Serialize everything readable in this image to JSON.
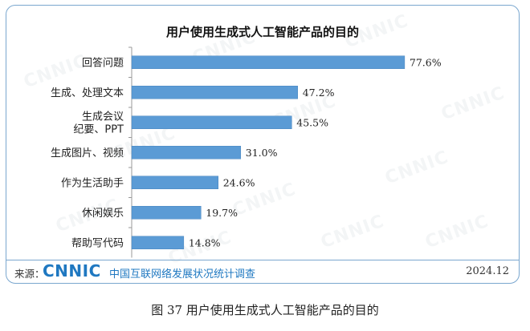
{
  "chart_data": {
    "type": "bar",
    "orientation": "horizontal",
    "title": "用户使用生成式人工智能产品的目的",
    "categories": [
      "回答问题",
      "生成、处理文本",
      "生成会议纪要、PPT",
      "生成图片、视频",
      "作为生活助手",
      "休闲娱乐",
      "帮助写代码"
    ],
    "category_lines": [
      [
        "回答问题"
      ],
      [
        "生成、处理文本"
      ],
      [
        "生成会议",
        "纪要、PPT"
      ],
      [
        "生成图片、视频"
      ],
      [
        "作为生活助手"
      ],
      [
        "休闲娱乐"
      ],
      [
        "帮助写代码"
      ]
    ],
    "values": [
      77.6,
      47.2,
      45.5,
      31.0,
      24.6,
      19.7,
      14.8
    ],
    "value_labels": [
      "77.6%",
      "47.2%",
      "45.5%",
      "31.0%",
      "24.6%",
      "19.7%",
      "14.8%"
    ],
    "xlim": [
      0,
      100
    ],
    "grid": false,
    "bar_color": "#5b9bd5",
    "xlabel": "",
    "ylabel": ""
  },
  "watermark": "CNNIC",
  "footer": {
    "source_label": "来源：",
    "logo_text": "CNNIC",
    "org_name": "中国互联网络发展状况统计调查",
    "date": "2024.12"
  },
  "caption": "图  37  用户使用生成式人工智能产品的目的",
  "colors": {
    "bar": "#5b9bd5",
    "frame": "#7aa7cf",
    "brand": "#1f78c1"
  }
}
